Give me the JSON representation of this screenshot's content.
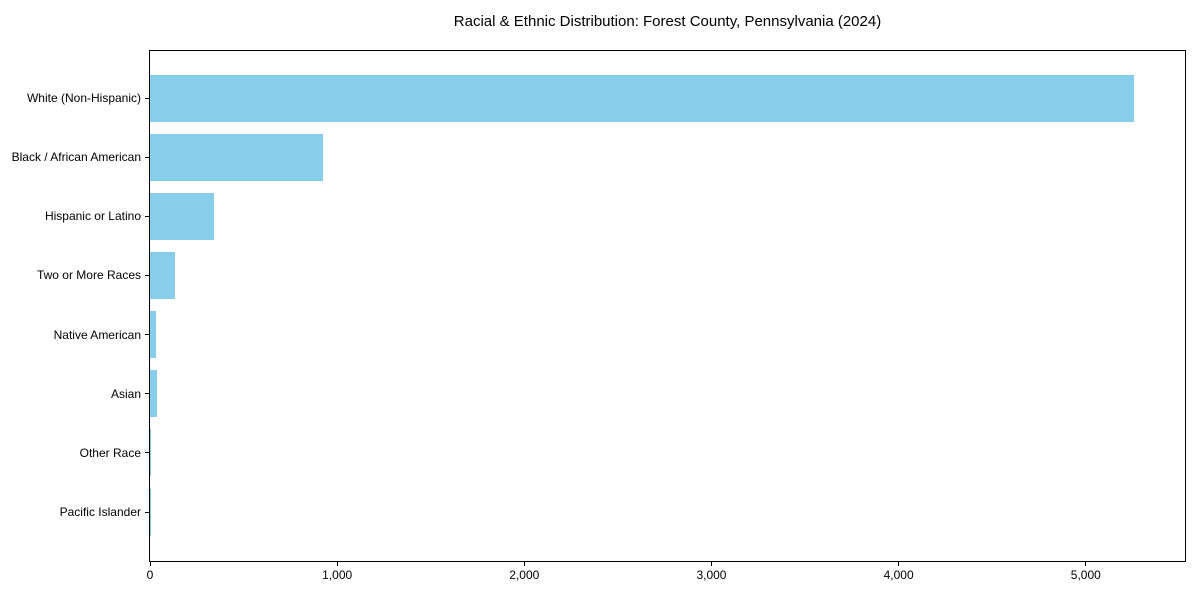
{
  "figure": {
    "background": "#ffffff"
  },
  "chart_data": {
    "type": "bar",
    "orientation": "horizontal",
    "title": "Racial & Ethnic Distribution: Forest County, Pennsylvania (2024)",
    "categories": [
      "White (Non-Hispanic)",
      "Black / African American",
      "Hispanic or Latino",
      "Two or More Races",
      "Native American",
      "Asian",
      "Other Race",
      "Pacific Islander"
    ],
    "values": [
      5257,
      927,
      343,
      135,
      32,
      35,
      4,
      1
    ],
    "xlabel": "",
    "ylabel": "",
    "xlim": [
      0,
      5530
    ],
    "xticks": [
      0,
      1000,
      2000,
      3000,
      4000,
      5000
    ],
    "xtick_labels": [
      "0",
      "1,000",
      "2,000",
      "3,000",
      "4,000",
      "5,000"
    ],
    "grid": false,
    "legend": null,
    "bar_color": "#87CEEB",
    "spine_color": "#000000",
    "text_color": "#000000"
  }
}
